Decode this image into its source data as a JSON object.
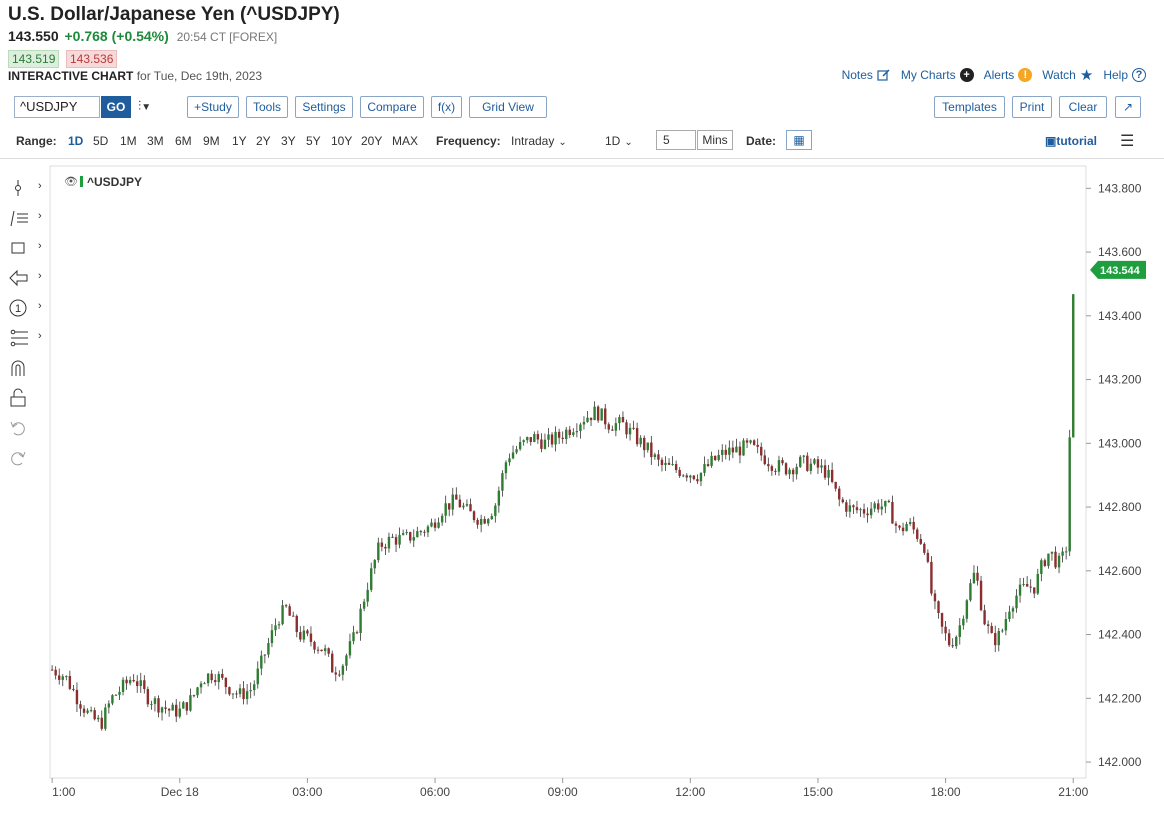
{
  "header": {
    "title": "U.S. Dollar/Japanese Yen (^USDJPY)",
    "last": "143.550",
    "change": "+0.768 (+0.54%)",
    "time": "20:54 CT [FOREX]",
    "bid": "143.519",
    "ask": "143.536",
    "chart_label": "INTERACTIVE CHART",
    "chart_date": "for Tue, Dec 19th, 2023"
  },
  "links": {
    "notes": "Notes",
    "my_charts": "My Charts",
    "alerts": "Alerts",
    "watch": "Watch",
    "help": "Help"
  },
  "toolbar": {
    "symbol": "^USDJPY",
    "go": "GO",
    "study": "+Study",
    "tools": "Tools",
    "settings": "Settings",
    "compare": "Compare",
    "fx": "f(x)",
    "grid_view": "Grid View",
    "templates": "Templates",
    "print": "Print",
    "clear": "Clear"
  },
  "range_bar": {
    "range_label": "Range:",
    "ranges": [
      "1D",
      "5D",
      "1M",
      "3M",
      "6M",
      "9M",
      "1Y",
      "2Y",
      "3Y",
      "5Y",
      "10Y",
      "20Y",
      "MAX"
    ],
    "active_range": "1D",
    "frequency_label": "Frequency:",
    "frequency": "Intraday",
    "period": "1D",
    "interval": "5",
    "interval_unit": "Mins",
    "date_label": "Date:",
    "tutorial": "tutorial"
  },
  "colors": {
    "up": "#2e7d32",
    "down": "#8b2e2e",
    "price_tag": "#1e9e3f",
    "link": "#1f5d9c"
  },
  "left_tools": [
    "crosshair-icon",
    "drawing-tools-icon",
    "shapes-icon",
    "arrow-icon",
    "annotation-icon",
    "fibonacci-icon",
    "magnet-icon",
    "lock-icon",
    "undo-icon",
    "redo-icon"
  ],
  "chart_data": {
    "type": "candlestick",
    "legend": "^USDJPY",
    "last_price_tag": "143.544",
    "y_ticks": [
      "142.000",
      "142.200",
      "142.400",
      "142.600",
      "142.800",
      "143.000",
      "143.200",
      "143.400",
      "143.600",
      "143.800"
    ],
    "ylim": [
      141.95,
      143.87
    ],
    "x_ticks": [
      {
        "label": "1:00",
        "t": 0
      },
      {
        "label": "Dec 18",
        "t": 3
      },
      {
        "label": "03:00",
        "t": 6
      },
      {
        "label": "06:00",
        "t": 9
      },
      {
        "label": "09:00",
        "t": 12
      },
      {
        "label": "12:00",
        "t": 15
      },
      {
        "label": "15:00",
        "t": 18
      },
      {
        "label": "18:00",
        "t": 21
      },
      {
        "label": "21:00",
        "t": 24
      }
    ],
    "x_range": [
      -0.05,
      24.3
    ],
    "close_path": [
      {
        "t": 0.0,
        "c": 142.29
      },
      {
        "t": 0.3,
        "c": 142.27
      },
      {
        "t": 0.6,
        "c": 142.2
      },
      {
        "t": 0.9,
        "c": 142.14
      },
      {
        "t": 1.15,
        "c": 142.12
      },
      {
        "t": 1.4,
        "c": 142.2
      },
      {
        "t": 1.7,
        "c": 142.24
      },
      {
        "t": 1.9,
        "c": 142.27
      },
      {
        "t": 2.2,
        "c": 142.21
      },
      {
        "t": 2.5,
        "c": 142.18
      },
      {
        "t": 2.8,
        "c": 142.16
      },
      {
        "t": 3.0,
        "c": 142.16
      },
      {
        "t": 3.3,
        "c": 142.2
      },
      {
        "t": 3.5,
        "c": 142.26
      },
      {
        "t": 3.8,
        "c": 142.28
      },
      {
        "t": 4.1,
        "c": 142.24
      },
      {
        "t": 4.4,
        "c": 142.21
      },
      {
        "t": 4.7,
        "c": 142.23
      },
      {
        "t": 5.0,
        "c": 142.34
      },
      {
        "t": 5.3,
        "c": 142.45
      },
      {
        "t": 5.5,
        "c": 142.48
      },
      {
        "t": 5.8,
        "c": 142.4
      },
      {
        "t": 6.1,
        "c": 142.38
      },
      {
        "t": 6.4,
        "c": 142.35
      },
      {
        "t": 6.6,
        "c": 142.29
      },
      {
        "t": 6.8,
        "c": 142.3
      },
      {
        "t": 7.1,
        "c": 142.39
      },
      {
        "t": 7.4,
        "c": 142.55
      },
      {
        "t": 7.7,
        "c": 142.68
      },
      {
        "t": 8.0,
        "c": 142.7
      },
      {
        "t": 8.3,
        "c": 142.7
      },
      {
        "t": 8.6,
        "c": 142.72
      },
      {
        "t": 8.9,
        "c": 142.74
      },
      {
        "t": 9.2,
        "c": 142.8
      },
      {
        "t": 9.5,
        "c": 142.82
      },
      {
        "t": 9.8,
        "c": 142.78
      },
      {
        "t": 10.1,
        "c": 142.76
      },
      {
        "t": 10.4,
        "c": 142.8
      },
      {
        "t": 10.7,
        "c": 142.96
      },
      {
        "t": 11.0,
        "c": 142.99
      },
      {
        "t": 11.3,
        "c": 143.02
      },
      {
        "t": 11.6,
        "c": 143.0
      },
      {
        "t": 11.9,
        "c": 143.02
      },
      {
        "t": 12.2,
        "c": 143.05
      },
      {
        "t": 12.5,
        "c": 143.08
      },
      {
        "t": 12.8,
        "c": 143.1
      },
      {
        "t": 13.1,
        "c": 143.06
      },
      {
        "t": 13.4,
        "c": 143.06
      },
      {
        "t": 13.7,
        "c": 143.02
      },
      {
        "t": 14.0,
        "c": 142.98
      },
      {
        "t": 14.3,
        "c": 142.93
      },
      {
        "t": 14.6,
        "c": 142.92
      },
      {
        "t": 14.9,
        "c": 142.91
      },
      {
        "t": 15.2,
        "c": 142.9
      },
      {
        "t": 15.5,
        "c": 142.94
      },
      {
        "t": 15.8,
        "c": 142.97
      },
      {
        "t": 16.1,
        "c": 142.98
      },
      {
        "t": 16.4,
        "c": 142.99
      },
      {
        "t": 16.7,
        "c": 142.96
      },
      {
        "t": 17.0,
        "c": 142.93
      },
      {
        "t": 17.3,
        "c": 142.92
      },
      {
        "t": 17.6,
        "c": 142.94
      },
      {
        "t": 17.9,
        "c": 142.93
      },
      {
        "t": 18.2,
        "c": 142.91
      },
      {
        "t": 18.5,
        "c": 142.82
      },
      {
        "t": 18.8,
        "c": 142.79
      },
      {
        "t": 19.1,
        "c": 142.79
      },
      {
        "t": 19.4,
        "c": 142.81
      },
      {
        "t": 19.7,
        "c": 142.79
      },
      {
        "t": 19.9,
        "c": 142.72
      },
      {
        "t": 20.1,
        "c": 142.75
      },
      {
        "t": 20.3,
        "c": 142.72
      },
      {
        "t": 20.5,
        "c": 142.68
      },
      {
        "t": 20.7,
        "c": 142.5
      },
      {
        "t": 20.9,
        "c": 142.42
      },
      {
        "t": 21.1,
        "c": 142.37
      },
      {
        "t": 21.3,
        "c": 142.41
      },
      {
        "t": 21.5,
        "c": 142.52
      },
      {
        "t": 21.7,
        "c": 142.6
      },
      {
        "t": 21.9,
        "c": 142.45
      },
      {
        "t": 22.1,
        "c": 142.38
      },
      {
        "t": 22.3,
        "c": 142.4
      },
      {
        "t": 22.5,
        "c": 142.49
      },
      {
        "t": 22.7,
        "c": 142.53
      },
      {
        "t": 22.9,
        "c": 142.55
      },
      {
        "t": 23.1,
        "c": 142.55
      },
      {
        "t": 23.3,
        "c": 142.63
      },
      {
        "t": 23.45,
        "c": 142.66
      },
      {
        "t": 23.6,
        "c": 142.63
      },
      {
        "t": 23.7,
        "c": 142.62
      },
      {
        "t": 23.85,
        "c": 142.68
      },
      {
        "t": 24.0,
        "c": 143.45
      },
      {
        "t": 24.05,
        "c": 143.54
      }
    ]
  }
}
